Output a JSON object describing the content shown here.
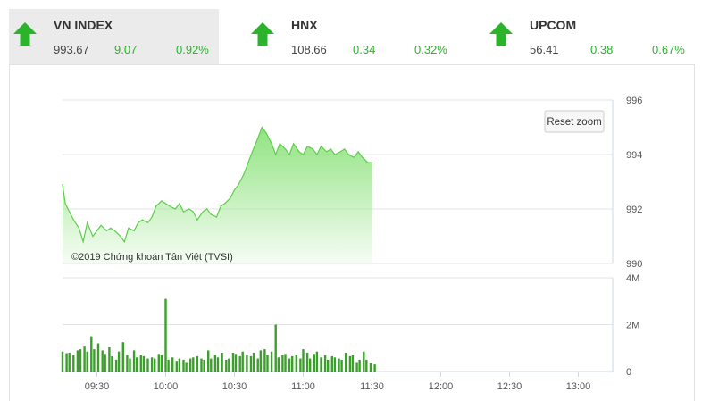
{
  "indices": [
    {
      "name": "VN INDEX",
      "price": "993.67",
      "change": "9.07",
      "percent": "0.92%",
      "trend": "up",
      "active": true
    },
    {
      "name": "HNX",
      "price": "108.66",
      "change": "0.34",
      "percent": "0.32%",
      "trend": "up",
      "active": false
    },
    {
      "name": "UPCOM",
      "price": "56.41",
      "change": "0.38",
      "percent": "0.67%",
      "trend": "up",
      "active": false
    }
  ],
  "colors": {
    "up": "#2bb32b",
    "area_top": "#90e380",
    "area_line": "#5ccf4a",
    "volume": "#3aa02a"
  },
  "reset_zoom_label": "Reset zoom",
  "credit": "©2019 Chứng khoán Tân Việt (TVSI)",
  "chart_data": [
    {
      "type": "area",
      "x_unit": "time of day (hours)",
      "xlim": [
        9.25,
        13.25
      ],
      "ylim": [
        990,
        996
      ],
      "y_ticks": [
        990,
        992,
        994,
        996
      ],
      "x": [
        9.25,
        9.27,
        9.3,
        9.33,
        9.37,
        9.4,
        9.43,
        9.47,
        9.5,
        9.53,
        9.57,
        9.6,
        9.63,
        9.67,
        9.7,
        9.73,
        9.77,
        9.8,
        9.83,
        9.87,
        9.9,
        9.93,
        9.97,
        10.0,
        10.03,
        10.07,
        10.1,
        10.13,
        10.17,
        10.2,
        10.23,
        10.27,
        10.3,
        10.33,
        10.37,
        10.4,
        10.43,
        10.47,
        10.5,
        10.53,
        10.57,
        10.6,
        10.63,
        10.67,
        10.7,
        10.73,
        10.77,
        10.8,
        10.83,
        10.87,
        10.9,
        10.93,
        10.97,
        11.0,
        11.03,
        11.07,
        11.1,
        11.13,
        11.17,
        11.2,
        11.23,
        11.27,
        11.3,
        11.33,
        11.37,
        11.4,
        11.43,
        11.47,
        11.5
      ],
      "y": [
        992.9,
        992.2,
        991.9,
        991.6,
        991.3,
        990.8,
        991.5,
        991.0,
        991.2,
        991.4,
        991.2,
        991.3,
        991.2,
        991.0,
        990.8,
        991.3,
        991.2,
        991.5,
        991.6,
        991.5,
        991.7,
        992.1,
        992.3,
        992.2,
        992.1,
        992.0,
        992.2,
        991.9,
        992.0,
        991.9,
        991.6,
        991.9,
        992.0,
        991.8,
        991.7,
        992.1,
        992.2,
        992.4,
        992.7,
        992.9,
        993.3,
        993.7,
        994.1,
        994.6,
        995.0,
        994.8,
        994.4,
        994.0,
        994.4,
        994.2,
        994.0,
        994.4,
        994.1,
        994.0,
        994.3,
        994.2,
        994.0,
        994.3,
        994.1,
        994.2,
        994.0,
        994.1,
        994.2,
        994.0,
        993.9,
        994.1,
        993.9,
        993.7,
        993.7
      ],
      "x_tick_labels": [
        "09:30",
        "10:00",
        "10:30",
        "11:00",
        "11:30",
        "12:00",
        "12:30",
        "13:00"
      ],
      "x_tick_values": [
        9.5,
        10.0,
        10.5,
        11.0,
        11.5,
        12.0,
        12.5,
        13.0
      ],
      "grid": true,
      "legend": "none"
    },
    {
      "type": "bar",
      "x_unit": "time of day (hours)",
      "xlim": [
        9.25,
        13.25
      ],
      "ylim": [
        0,
        4000000
      ],
      "y_tick_labels": [
        "0",
        "2M",
        "4M"
      ],
      "y_tick_values": [
        0,
        2000000,
        4000000
      ],
      "x": [
        9.25,
        9.28,
        9.3,
        9.33,
        9.36,
        9.38,
        9.41,
        9.43,
        9.46,
        9.48,
        9.51,
        9.54,
        9.56,
        9.59,
        9.61,
        9.64,
        9.66,
        9.69,
        9.72,
        9.74,
        9.77,
        9.79,
        9.82,
        9.84,
        9.87,
        9.9,
        9.92,
        9.95,
        9.97,
        10.0,
        10.02,
        10.05,
        10.08,
        10.1,
        10.13,
        10.15,
        10.18,
        10.2,
        10.23,
        10.26,
        10.28,
        10.31,
        10.33,
        10.36,
        10.38,
        10.41,
        10.44,
        10.46,
        10.49,
        10.51,
        10.54,
        10.56,
        10.59,
        10.62,
        10.64,
        10.67,
        10.69,
        10.72,
        10.74,
        10.77,
        10.8,
        10.82,
        10.85,
        10.87,
        10.9,
        10.92,
        10.95,
        10.98,
        11.0,
        11.03,
        11.05,
        11.08,
        11.1,
        11.13,
        11.16,
        11.18,
        11.21,
        11.23,
        11.26,
        11.28,
        11.31,
        11.34,
        11.36,
        11.39,
        11.41,
        11.44,
        11.46,
        11.49,
        11.52
      ],
      "values": [
        850000,
        780000,
        800000,
        700000,
        900000,
        950000,
        1100000,
        850000,
        1500000,
        950000,
        1200000,
        900000,
        750000,
        1050000,
        650000,
        500000,
        850000,
        1250000,
        700000,
        550000,
        900000,
        600000,
        700000,
        650000,
        550000,
        600000,
        550000,
        750000,
        700000,
        3100000,
        500000,
        600000,
        450000,
        550000,
        500000,
        400000,
        550000,
        600000,
        650000,
        550000,
        500000,
        900000,
        550000,
        700000,
        600000,
        800000,
        500000,
        550000,
        800000,
        750000,
        650000,
        850000,
        700000,
        650000,
        800000,
        550000,
        900000,
        950000,
        700000,
        850000,
        2000000,
        600000,
        700000,
        750000,
        550000,
        650000,
        700000,
        550000,
        950000,
        800000,
        550000,
        750000,
        850000,
        600000,
        700000,
        500000,
        650000,
        600000,
        550000,
        500000,
        800000,
        650000,
        700000,
        400000,
        500000,
        850000,
        500000,
        350000,
        300000
      ],
      "grid": true,
      "legend": "none"
    }
  ]
}
